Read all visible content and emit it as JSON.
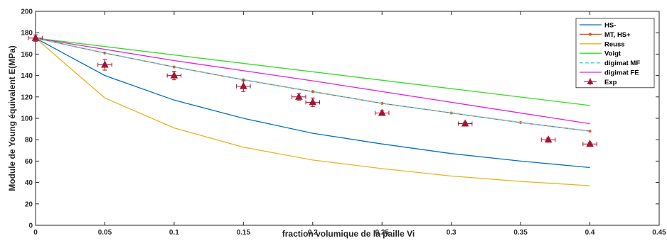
{
  "chart_data": {
    "type": "line",
    "title": "",
    "xlabel": "fraction volumique de la paille Vi",
    "ylabel": "Module de Young équivalent E(MPa)",
    "xlim": [
      0,
      0.45
    ],
    "ylim": [
      0,
      200
    ],
    "xticks": [
      "0",
      "0.05",
      "0.1",
      "0.15",
      "0.2",
      "0.25",
      "0.3",
      "0.35",
      "0.4",
      "0.45"
    ],
    "xtick_values": [
      0,
      0.05,
      0.1,
      0.15,
      0.2,
      0.25,
      0.3,
      0.35,
      0.4,
      0.45
    ],
    "yticks": [
      "0",
      "20",
      "40",
      "60",
      "80",
      "100",
      "120",
      "140",
      "160",
      "180",
      "200"
    ],
    "ytick_values": [
      0,
      20,
      40,
      60,
      80,
      100,
      120,
      140,
      160,
      180,
      200
    ],
    "grid": false,
    "legend_position": "top-right",
    "series": [
      {
        "name": "HS-",
        "color": "#0072BD",
        "style": "solid",
        "marker": "none",
        "x": [
          0,
          0.05,
          0.1,
          0.15,
          0.2,
          0.25,
          0.3,
          0.35,
          0.4
        ],
        "y": [
          175,
          140,
          117,
          100,
          86,
          76,
          67,
          60,
          54
        ]
      },
      {
        "name": "MT, HS+",
        "color": "#D95319",
        "style": "solid",
        "marker": "dot",
        "x": [
          0,
          0.05,
          0.1,
          0.15,
          0.2,
          0.25,
          0.3,
          0.35,
          0.4
        ],
        "y": [
          175,
          161,
          148,
          136,
          125,
          114,
          105,
          96,
          88
        ]
      },
      {
        "name": "Reuss",
        "color": "#EDB120",
        "style": "solid",
        "marker": "none",
        "x": [
          0,
          0.05,
          0.1,
          0.15,
          0.2,
          0.25,
          0.3,
          0.35,
          0.4
        ],
        "y": [
          175,
          119,
          91,
          73,
          61,
          53,
          46,
          41,
          37
        ]
      },
      {
        "name": "Voigt",
        "color": "#33DD22",
        "style": "solid",
        "marker": "none",
        "x": [
          0,
          0.4
        ],
        "y": [
          175,
          112
        ]
      },
      {
        "name": "digimat MF",
        "color": "#4DD8E8",
        "style": "dashed",
        "marker": "none",
        "x": [
          0,
          0.05,
          0.1,
          0.15,
          0.2,
          0.25,
          0.3,
          0.35,
          0.4
        ],
        "y": [
          175,
          161,
          148,
          136,
          125,
          114,
          105,
          96,
          88
        ]
      },
      {
        "name": "digimat FE",
        "color": "#E020E0",
        "style": "solid",
        "marker": "none",
        "x": [
          0,
          0.1,
          0.2,
          0.3,
          0.4
        ],
        "y": [
          175,
          154,
          135,
          115,
          95
        ]
      },
      {
        "name": "Exp",
        "color": "#A2142F",
        "style": "none",
        "marker": "triangle",
        "x": [
          0,
          0.05,
          0.1,
          0.15,
          0.19,
          0.2,
          0.25,
          0.31,
          0.37,
          0.4
        ],
        "y": [
          175,
          150,
          140,
          130,
          120,
          115,
          105,
          95,
          80,
          76
        ],
        "xerr": [
          0.005,
          0.005,
          0.005,
          0.005,
          0.005,
          0.005,
          0.005,
          0.005,
          0.005,
          0.005
        ],
        "yerr": [
          3,
          5,
          4,
          5,
          3,
          4,
          2,
          1.5,
          1.5,
          1.5
        ]
      }
    ]
  }
}
